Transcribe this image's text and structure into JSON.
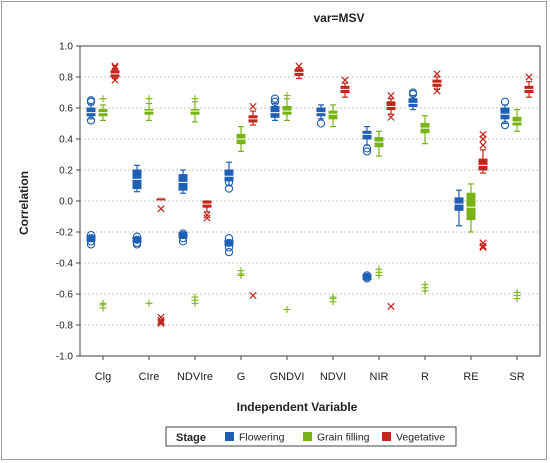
{
  "chart_data": {
    "type": "box",
    "title": "var=MSV",
    "xlabel": "Independent Variable",
    "ylabel": "Correlation",
    "ylim": [
      -1.0,
      1.0
    ],
    "yticks": [
      "1.0",
      "0.8",
      "0.6",
      "0.4",
      "0.2",
      "0.0",
      "-0.2",
      "-0.4",
      "-0.6",
      "-0.8",
      "-1.0"
    ],
    "categories": [
      "Clg",
      "CIre",
      "NDVIre",
      "G",
      "GNDVI",
      "NDVI",
      "NIR",
      "R",
      "RE",
      "SR"
    ],
    "legend": {
      "title": "Stage",
      "placement": "bottom"
    },
    "grid": true,
    "series": [
      {
        "name": "Flowering",
        "color": "#1f5fb4",
        "boxes": [
          {
            "q1": 0.55,
            "median": 0.57,
            "q3": 0.6,
            "wlo": 0.53,
            "whi": 0.62,
            "outliers": [
              0.52,
              0.64,
              0.65
            ]
          },
          {
            "q1": 0.08,
            "median": 0.14,
            "q3": 0.2,
            "wlo": 0.06,
            "whi": 0.23,
            "outliers": []
          },
          {
            "q1": 0.07,
            "median": 0.12,
            "q3": 0.17,
            "wlo": 0.05,
            "whi": 0.2,
            "outliers": []
          },
          {
            "q1": 0.13,
            "median": 0.16,
            "q3": 0.2,
            "wlo": 0.1,
            "whi": 0.25,
            "outliers": [
              0.08,
              0.12
            ]
          },
          {
            "q1": 0.54,
            "median": 0.57,
            "q3": 0.61,
            "wlo": 0.52,
            "whi": 0.63,
            "outliers": [
              0.64,
              0.66
            ]
          },
          {
            "q1": 0.55,
            "median": 0.57,
            "q3": 0.6,
            "wlo": 0.53,
            "whi": 0.62,
            "outliers": [
              0.5
            ]
          },
          {
            "q1": 0.4,
            "median": 0.43,
            "q3": 0.45,
            "wlo": 0.36,
            "whi": 0.48,
            "outliers": [
              0.32,
              0.34
            ]
          },
          {
            "q1": 0.61,
            "median": 0.63,
            "q3": 0.66,
            "wlo": 0.59,
            "whi": 0.68,
            "outliers": [
              0.69,
              0.7
            ]
          },
          {
            "q1": -0.06,
            "median": -0.02,
            "q3": 0.02,
            "wlo": -0.16,
            "whi": 0.07,
            "outliers": []
          },
          {
            "q1": 0.53,
            "median": 0.56,
            "q3": 0.6,
            "wlo": 0.5,
            "whi": 0.62,
            "outliers": [
              0.49,
              0.64
            ]
          }
        ],
        "lower_cluster": [
          {
            "median": -0.24,
            "outliers": [
              -0.22,
              -0.26,
              -0.28
            ]
          },
          {
            "median": -0.25,
            "outliers": [
              -0.23,
              -0.27,
              -0.28
            ]
          },
          {
            "median": -0.22,
            "outliers": [
              -0.21,
              -0.24,
              -0.26
            ]
          },
          {
            "median": -0.27,
            "outliers": [
              -0.24,
              -0.3,
              -0.33
            ]
          },
          null,
          null,
          {
            "median": -0.49,
            "outliers": [
              -0.48,
              -0.5
            ]
          },
          null,
          null,
          null
        ]
      },
      {
        "name": "Grain filling",
        "color": "#7ab317",
        "boxes": [
          {
            "q1": 0.55,
            "median": 0.57,
            "q3": 0.59,
            "wlo": 0.52,
            "whi": 0.62,
            "outliers": [
              0.66
            ]
          },
          {
            "q1": 0.56,
            "median": 0.58,
            "q3": 0.59,
            "wlo": 0.52,
            "whi": 0.63,
            "outliers": [
              0.66
            ]
          },
          {
            "q1": 0.56,
            "median": 0.58,
            "q3": 0.59,
            "wlo": 0.51,
            "whi": 0.64,
            "outliers": [
              0.66
            ]
          },
          {
            "q1": 0.37,
            "median": 0.4,
            "q3": 0.43,
            "wlo": 0.32,
            "whi": 0.48,
            "outliers": []
          },
          {
            "q1": 0.56,
            "median": 0.58,
            "q3": 0.61,
            "wlo": 0.52,
            "whi": 0.66,
            "outliers": [
              0.68
            ]
          },
          {
            "q1": 0.53,
            "median": 0.56,
            "q3": 0.58,
            "wlo": 0.48,
            "whi": 0.62,
            "outliers": []
          },
          {
            "q1": 0.35,
            "median": 0.38,
            "q3": 0.41,
            "wlo": 0.29,
            "whi": 0.45,
            "outliers": []
          },
          {
            "q1": 0.44,
            "median": 0.47,
            "q3": 0.5,
            "wlo": 0.37,
            "whi": 0.55,
            "outliers": []
          },
          {
            "q1": -0.12,
            "median": -0.04,
            "q3": 0.05,
            "wlo": -0.2,
            "whi": 0.11,
            "outliers": []
          },
          {
            "q1": 0.49,
            "median": 0.51,
            "q3": 0.54,
            "wlo": 0.45,
            "whi": 0.59,
            "outliers": []
          }
        ],
        "lower_cluster": [
          {
            "median": -0.67,
            "outliers": [
              -0.66,
              -0.69
            ]
          },
          {
            "median": -0.66,
            "outliers": []
          },
          {
            "median": -0.64,
            "outliers": [
              -0.62,
              -0.66
            ]
          },
          {
            "median": -0.47,
            "outliers": [
              -0.45,
              -0.48
            ]
          },
          {
            "median": -0.7,
            "outliers": []
          },
          {
            "median": -0.63,
            "outliers": [
              -0.62,
              -0.65
            ]
          },
          {
            "median": -0.46,
            "outliers": [
              -0.44,
              -0.48
            ]
          },
          {
            "median": -0.56,
            "outliers": [
              -0.54,
              -0.58
            ]
          },
          null,
          {
            "median": -0.61,
            "outliers": [
              -0.59,
              -0.63
            ]
          }
        ]
      },
      {
        "name": "Vegetative",
        "color": "#c0261c",
        "boxes": [
          {
            "q1": 0.8,
            "median": 0.82,
            "q3": 0.84,
            "wlo": 0.79,
            "whi": 0.85,
            "outliers": [
              0.78,
              0.86,
              0.87
            ]
          },
          {
            "q1": 0.01,
            "median": 0.02,
            "q3": 0.02,
            "wlo": 0.01,
            "whi": 0.02,
            "outliers": [
              -0.05
            ]
          },
          {
            "q1": -0.04,
            "median": -0.02,
            "q3": 0.0,
            "wlo": -0.07,
            "whi": 0.0,
            "outliers": [
              -0.09,
              -0.11
            ]
          },
          {
            "q1": 0.51,
            "median": 0.53,
            "q3": 0.55,
            "wlo": 0.49,
            "whi": 0.58,
            "outliers": [
              0.61
            ]
          },
          {
            "q1": 0.81,
            "median": 0.83,
            "q3": 0.85,
            "wlo": 0.79,
            "whi": 0.86,
            "outliers": [
              0.87
            ]
          },
          {
            "q1": 0.7,
            "median": 0.72,
            "q3": 0.74,
            "wlo": 0.67,
            "whi": 0.76,
            "outliers": [
              0.78
            ]
          },
          {
            "q1": 0.59,
            "median": 0.61,
            "q3": 0.64,
            "wlo": 0.56,
            "whi": 0.66,
            "outliers": [
              0.54,
              0.68
            ]
          },
          {
            "q1": 0.74,
            "median": 0.76,
            "q3": 0.78,
            "wlo": 0.72,
            "whi": 0.8,
            "outliers": [
              0.71,
              0.82
            ]
          },
          {
            "q1": 0.2,
            "median": 0.23,
            "q3": 0.27,
            "wlo": 0.18,
            "whi": 0.33,
            "outliers": [
              0.36,
              0.4,
              0.43
            ]
          },
          {
            "q1": 0.7,
            "median": 0.72,
            "q3": 0.74,
            "wlo": 0.67,
            "whi": 0.77,
            "outliers": [
              0.8
            ]
          }
        ],
        "lower_cluster": [
          null,
          {
            "median": -0.77,
            "outliers": [
              -0.75,
              -0.78,
              -0.79
            ]
          },
          null,
          {
            "median": -0.61,
            "outliers": []
          },
          null,
          null,
          {
            "median": -0.68,
            "outliers": []
          },
          null,
          {
            "median": -0.29,
            "outliers": [
              -0.27,
              -0.3
            ]
          },
          null
        ]
      }
    ]
  }
}
